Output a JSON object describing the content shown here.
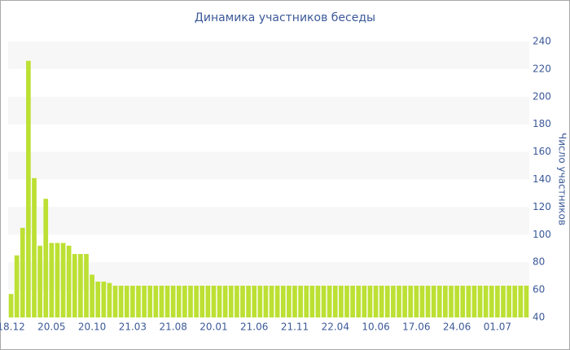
{
  "chart_data": {
    "type": "bar",
    "title": "Динамика участников беседы",
    "y_label": "Число участников",
    "categories": [
      "18.12",
      null,
      null,
      null,
      null,
      null,
      null,
      "20.05",
      null,
      null,
      null,
      null,
      null,
      null,
      "20.10",
      null,
      null,
      null,
      null,
      null,
      null,
      "21.03",
      null,
      null,
      null,
      null,
      null,
      null,
      "21.08",
      null,
      null,
      null,
      null,
      null,
      null,
      "20.01",
      null,
      null,
      null,
      null,
      null,
      null,
      "21.06",
      null,
      null,
      null,
      null,
      null,
      null,
      "21.11",
      null,
      null,
      null,
      null,
      null,
      null,
      "22.04",
      null,
      null,
      null,
      null,
      null,
      null,
      "10.06",
      null,
      null,
      null,
      null,
      null,
      null,
      "17.06",
      null,
      null,
      null,
      null,
      null,
      null,
      "24.06",
      null,
      null,
      null,
      null,
      null,
      null,
      "01.07",
      null,
      null,
      null,
      null,
      null
    ],
    "values": [
      57,
      85,
      105,
      226,
      141,
      92,
      126,
      94,
      94,
      94,
      92,
      86,
      86,
      86,
      71,
      66,
      66,
      65,
      63,
      63,
      63,
      63,
      63,
      63,
      63,
      63,
      63,
      63,
      63,
      63,
      63,
      63,
      63,
      63,
      63,
      63,
      63,
      63,
      63,
      63,
      63,
      63,
      63,
      63,
      63,
      63,
      63,
      63,
      63,
      63,
      63,
      63,
      63,
      63,
      63,
      63,
      63,
      63,
      63,
      63,
      63,
      63,
      63,
      63,
      63,
      63,
      63,
      63,
      63,
      63,
      63,
      63,
      63,
      63,
      63,
      63,
      63,
      63,
      63,
      63,
      63,
      63,
      63,
      63,
      63,
      63,
      63,
      63,
      63,
      63
    ],
    "color": "#bce033",
    "ylim": [
      40,
      240
    ],
    "yticks": [
      40,
      60,
      80,
      100,
      120,
      140,
      160,
      180,
      200,
      220,
      240
    ],
    "grid": true,
    "y_axis_side": "right"
  }
}
